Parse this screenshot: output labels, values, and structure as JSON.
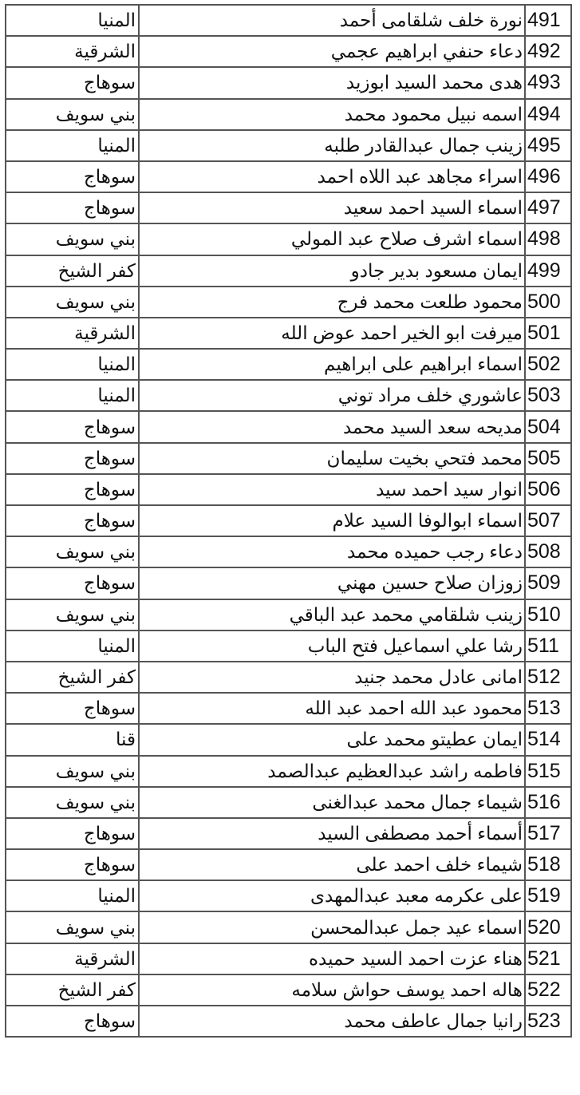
{
  "rows": [
    {
      "num": "491",
      "name": "نورة خلف شلقامى أحمد",
      "gov": "المنيا"
    },
    {
      "num": "492",
      "name": "دعاء حنفي ابراهيم عجمي",
      "gov": "الشرقية"
    },
    {
      "num": "493",
      "name": "هدى محمد السيد ابوزيد",
      "gov": "سوهاج"
    },
    {
      "num": "494",
      "name": "اسمه نبيل محمود محمد",
      "gov": "بني سويف"
    },
    {
      "num": "495",
      "name": "زينب جمال عبدالقادر طلبه",
      "gov": "المنيا"
    },
    {
      "num": "496",
      "name": "اسراء مجاهد عبد اللاه احمد",
      "gov": "سوهاج"
    },
    {
      "num": "497",
      "name": "اسماء السيد احمد سعيد",
      "gov": "سوهاج"
    },
    {
      "num": "498",
      "name": "اسماء اشرف صلاح عبد المولي",
      "gov": "بني سويف"
    },
    {
      "num": "499",
      "name": "ايمان مسعود بدير جادو",
      "gov": "كفر الشيخ"
    },
    {
      "num": "500",
      "name": "محمود طلعت محمد فرج",
      "gov": "بني سويف"
    },
    {
      "num": "501",
      "name": "ميرفت ابو الخير احمد عوض الله",
      "gov": "الشرقية"
    },
    {
      "num": "502",
      "name": "اسماء ابراهيم على ابراهيم",
      "gov": "المنيا"
    },
    {
      "num": "503",
      "name": "عاشوري خلف مراد توني",
      "gov": "المنيا"
    },
    {
      "num": "504",
      "name": "مديحه سعد السيد محمد",
      "gov": "سوهاج"
    },
    {
      "num": "505",
      "name": "محمد فتحي بخيت سليمان",
      "gov": "سوهاج"
    },
    {
      "num": "506",
      "name": "انوار سيد احمد سيد",
      "gov": "سوهاج"
    },
    {
      "num": "507",
      "name": "اسماء ابوالوفا السيد علام",
      "gov": "سوهاج"
    },
    {
      "num": "508",
      "name": "دعاء رجب حميده محمد",
      "gov": "بني سويف"
    },
    {
      "num": "509",
      "name": "زوزان صلاح حسين مهني",
      "gov": "سوهاج"
    },
    {
      "num": "510",
      "name": "زينب شلقامي محمد عبد الباقي",
      "gov": "بني سويف"
    },
    {
      "num": "511",
      "name": "رشا علي اسماعيل فتح الباب",
      "gov": "المنيا"
    },
    {
      "num": "512",
      "name": "امانى عادل محمد جنيد",
      "gov": "كفر الشيخ"
    },
    {
      "num": "513",
      "name": "محمود عبد الله احمد عبد الله",
      "gov": "سوهاج"
    },
    {
      "num": "514",
      "name": "ايمان عطيتو محمد على",
      "gov": "قنا"
    },
    {
      "num": "515",
      "name": "فاطمه راشد عبدالعظيم عبدالصمد",
      "gov": "بني سويف"
    },
    {
      "num": "516",
      "name": "شيماء جمال محمد عبدالغنى",
      "gov": "بني سويف"
    },
    {
      "num": "517",
      "name": "أسماء أحمد مصطفى السيد",
      "gov": "سوهاج"
    },
    {
      "num": "518",
      "name": "شيماء خلف احمد على",
      "gov": "سوهاج"
    },
    {
      "num": "519",
      "name": "على عكرمه معبد عبدالمهدى",
      "gov": "المنيا"
    },
    {
      "num": "520",
      "name": "اسماء عيد جمل عبدالمحسن",
      "gov": "بني سويف"
    },
    {
      "num": "521",
      "name": "هناء عزت احمد السيد حميده",
      "gov": "الشرقية"
    },
    {
      "num": "522",
      "name": "هاله احمد يوسف حواش سلامه",
      "gov": "كفر الشيخ"
    },
    {
      "num": "523",
      "name": "رانيا جمال عاطف محمد",
      "gov": "سوهاج"
    }
  ]
}
